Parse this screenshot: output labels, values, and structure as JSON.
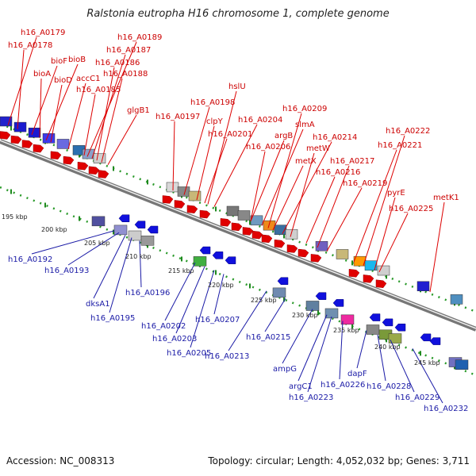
{
  "title": "Ralstonia eutropha H16 chromosome 1, complete genome",
  "accession": "Accession: NC_008313",
  "topology": "Topology: circular; Length: 4,052,032 bp; Genes: 3,711",
  "colors": {
    "forward_strand": "#dd0000",
    "reverse_strand": "#1010cc",
    "forward_label": "#cc0000",
    "reverse_label": "#1a1aa6"
  },
  "kbp_ticks": [
    "195 kbp",
    "200 kbp",
    "205 kbp",
    "210 kbp",
    "215 kbp",
    "220 kbp",
    "225 kbp",
    "230 kbp",
    "235 kbp",
    "240 kbp",
    "245 kbp"
  ],
  "forward_genes": [
    "h16_A0179",
    "h16_A0178",
    "bioF",
    "bioB",
    "bioA",
    "bioD",
    "accC1",
    "h16_A0189",
    "h16_A0187",
    "h16_A0186",
    "h16_A0188",
    "h16_A0185",
    "glgB1",
    "hslU",
    "h16_A0198",
    "h16_A0197",
    "clpY",
    "h16_A0201",
    "h16_A0204",
    "h16_A0209",
    "argB",
    "slmA",
    "h16_A0206",
    "h16_A0214",
    "metW",
    "metX",
    "h16_A0217",
    "h16_A0216",
    "h16_A0219",
    "h16_A0222",
    "h16_A0221",
    "pyrE",
    "h16_A0225",
    "metK1"
  ],
  "reverse_genes": [
    "h16_A0192",
    "h16_A0193",
    "h16_A0196",
    "dksA1",
    "h16_A0195",
    "h16_A0202",
    "h16_A0207",
    "h16_A0203",
    "h16_A0205",
    "h16_A0213",
    "h16_A0215",
    "ampG",
    "argC1",
    "h16_A0226",
    "dapF",
    "h16_A0223",
    "h16_A0228",
    "h16_A0229",
    "h16_A0232"
  ]
}
